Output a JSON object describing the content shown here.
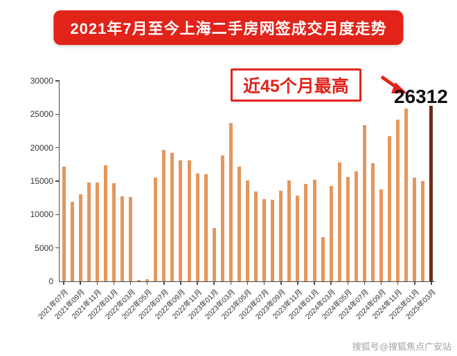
{
  "banner": {
    "title": "2021年7月至今上海二手房网签成交月度走势"
  },
  "annotation": {
    "label": "近45个月最高",
    "value": "26312"
  },
  "watermark": "搜狐号@搜狐焦点广安站",
  "icons": {
    "arrow": "annotation-arrow-icon"
  },
  "colors": {
    "accent_red": "#E2231A",
    "bar": "#E4975C",
    "bar_highlight": "#6E2B1B",
    "axis": "#4a4a4a",
    "watermark_gray": "#A3A3A3"
  },
  "chart_data": {
    "type": "bar",
    "title": "2021年7月至今上海二手房网签成交月度走势",
    "xlabel": "",
    "ylabel": "",
    "ylim": [
      0,
      30000
    ],
    "y_ticks": [
      0,
      5000,
      10000,
      15000,
      20000,
      25000,
      30000
    ],
    "x_tick_interval": 2,
    "grid": false,
    "legend": "none",
    "highlight_last_bar": true,
    "x": [
      "2021年07月",
      "2021年08月",
      "2021年09月",
      "2021年10月",
      "2021年11月",
      "2021年12月",
      "2022年01月",
      "2022年02月",
      "2022年03月",
      "2022年04月",
      "2022年05月",
      "2022年06月",
      "2022年07月",
      "2022年08月",
      "2022年09月",
      "2022年10月",
      "2022年11月",
      "2022年12月",
      "2023年01月",
      "2023年02月",
      "2023年03月",
      "2023年04月",
      "2023年05月",
      "2023年06月",
      "2023年07月",
      "2023年08月",
      "2023年09月",
      "2023年10月",
      "2023年11月",
      "2023年12月",
      "2024年01月",
      "2024年02月",
      "2024年03月",
      "2024年04月",
      "2024年05月",
      "2024年06月",
      "2024年07月",
      "2024年08月",
      "2024年09月",
      "2024年10月",
      "2024年11月",
      "2024年12月",
      "2025年01月",
      "2025年02月",
      "2025年03月"
    ],
    "values": [
      17200,
      11900,
      13000,
      14800,
      14800,
      17400,
      14700,
      12700,
      12600,
      200,
      300,
      15500,
      19700,
      19200,
      18100,
      18100,
      16100,
      16000,
      8000,
      18800,
      23700,
      17200,
      15100,
      13400,
      12300,
      12200,
      13600,
      15100,
      12800,
      14600,
      15200,
      6600,
      14300,
      17800,
      15600,
      16400,
      23400,
      17700,
      13800,
      21700,
      24200,
      25900,
      15500,
      15000,
      26312
    ],
    "annotations": [
      {
        "text": "近45个月最高",
        "target_value_label": "26312"
      }
    ]
  }
}
